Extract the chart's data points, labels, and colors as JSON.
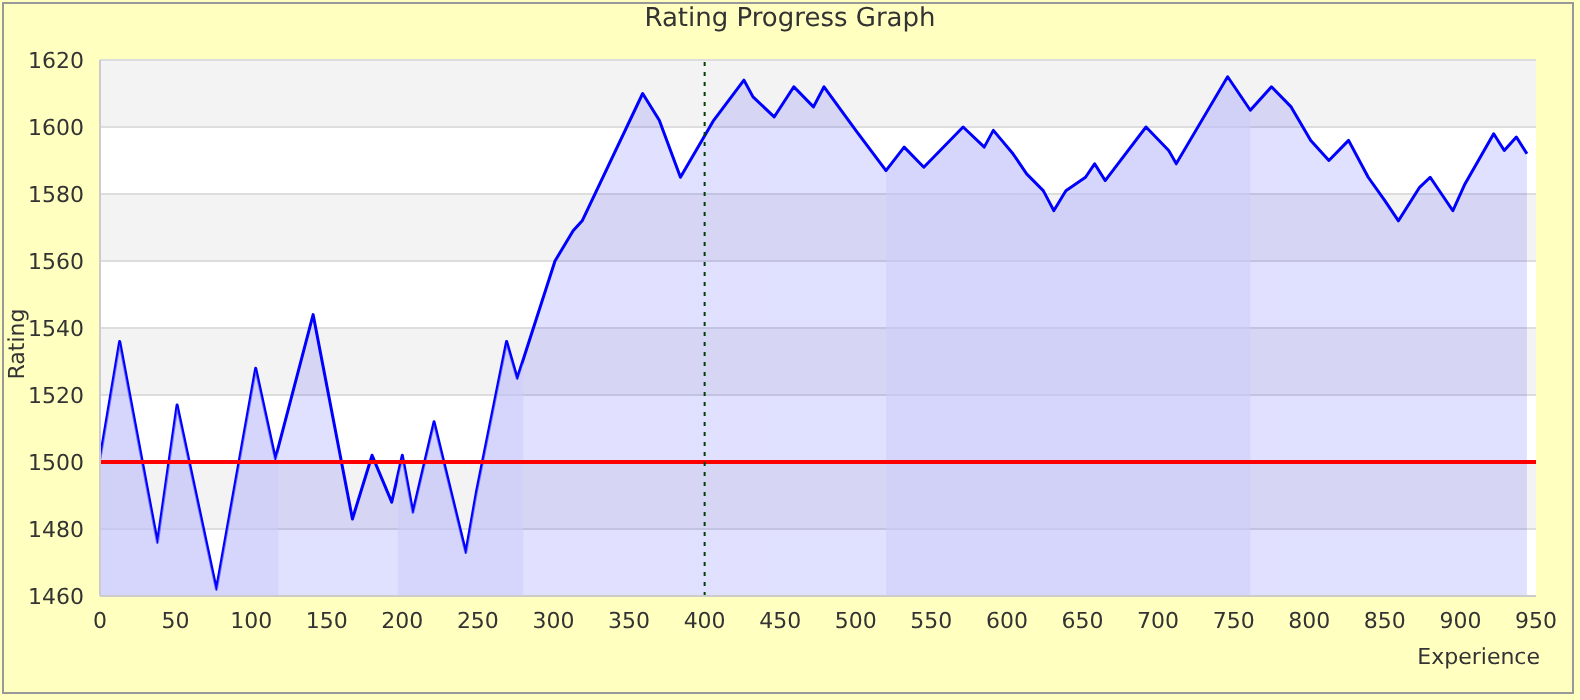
{
  "chart_data": {
    "type": "area",
    "title": "Rating Progress Graph",
    "xlabel": "Experience",
    "ylabel": "Rating",
    "x": [
      0,
      13,
      38,
      51,
      77,
      103,
      116,
      141,
      167,
      180,
      193,
      200,
      207,
      221,
      242,
      249,
      269,
      276,
      301,
      313,
      319,
      359,
      370,
      384,
      406,
      426,
      432,
      446,
      459,
      472,
      479,
      500,
      520,
      532,
      545,
      571,
      585,
      591,
      604,
      613,
      624,
      631,
      639,
      652,
      658,
      665,
      692,
      707,
      712,
      746,
      761,
      775,
      788,
      801,
      813,
      826,
      839,
      850,
      859,
      873,
      880,
      895,
      903,
      922,
      929,
      937,
      944
    ],
    "series": [
      {
        "color": "#0000ff",
        "values": [
          1501,
          1536,
          1476,
          1517,
          1462,
          1528,
          1501,
          1544,
          1483,
          1502,
          1488,
          1502,
          1485,
          1512,
          1473,
          1491,
          1536,
          1525,
          1560,
          1569,
          1572,
          1610,
          1602,
          1585,
          1602,
          1614,
          1609,
          1603,
          1612,
          1606,
          1612,
          1599,
          1587,
          1594,
          1588,
          1600,
          1594,
          1599,
          1592,
          1586,
          1581,
          1575,
          1581,
          1585,
          1589,
          1584,
          1600,
          1593,
          1589,
          1615,
          1605,
          1612,
          1606,
          1596,
          1590,
          1596,
          1585,
          1578,
          1572,
          1582,
          1585,
          1575,
          1583,
          1598,
          1593,
          1597,
          1592
        ]
      }
    ],
    "xlim": [
      0,
      950
    ],
    "xticks": [
      0,
      50,
      100,
      150,
      200,
      250,
      300,
      350,
      400,
      450,
      500,
      550,
      600,
      650,
      700,
      750,
      800,
      850,
      900,
      950
    ],
    "ylim": [
      1460,
      1620
    ],
    "yticks": [
      1460,
      1480,
      1500,
      1520,
      1540,
      1560,
      1580,
      1600,
      1620
    ],
    "grid": "y",
    "ref_lines": [
      {
        "axis": "y",
        "value": 1500,
        "color": "#ff0000",
        "line_style": "solid"
      },
      {
        "axis": "x",
        "value": 400,
        "color": "#004000",
        "line_style": "dotted"
      }
    ],
    "bands": [
      {
        "axis": "x",
        "from": 0,
        "to": 118,
        "color": "#cdcdfa"
      },
      {
        "axis": "x",
        "from": 197,
        "to": 280,
        "color": "#cdcdfa"
      },
      {
        "axis": "x",
        "from": 520,
        "to": 761,
        "color": "#cdcdfa"
      }
    ]
  }
}
